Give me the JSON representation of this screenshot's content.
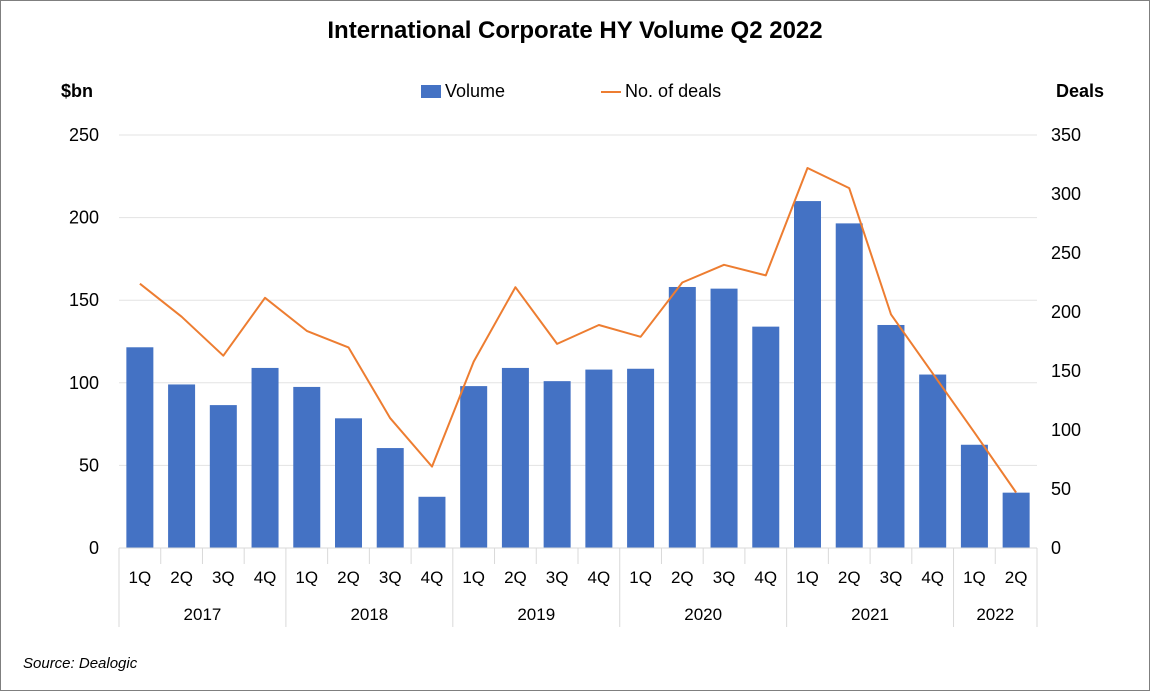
{
  "chart_data": {
    "type": "bar",
    "title": "International Corporate HY Volume Q2 2022",
    "ylabel_left": "$bn",
    "ylabel_right": "Deals",
    "ylim_left": [
      0,
      250
    ],
    "ylim_right": [
      0,
      350
    ],
    "yticks_left": [
      "0",
      "50",
      "100",
      "150",
      "200",
      "250"
    ],
    "yticks_right": [
      "0",
      "50",
      "100",
      "150",
      "200",
      "250",
      "300",
      "350"
    ],
    "grid": true,
    "legend_position": "top",
    "categories": [
      "1Q",
      "2Q",
      "3Q",
      "4Q",
      "1Q",
      "2Q",
      "3Q",
      "4Q",
      "1Q",
      "2Q",
      "3Q",
      "4Q",
      "1Q",
      "2Q",
      "3Q",
      "4Q",
      "1Q",
      "2Q",
      "3Q",
      "4Q",
      "1Q",
      "2Q"
    ],
    "groups": [
      {
        "label": "2017",
        "count": 4
      },
      {
        "label": "2018",
        "count": 4
      },
      {
        "label": "2019",
        "count": 4
      },
      {
        "label": "2020",
        "count": 4
      },
      {
        "label": "2021",
        "count": 4
      },
      {
        "label": "2022",
        "count": 2
      }
    ],
    "series": [
      {
        "name": "Volume",
        "type": "bar",
        "axis": "left",
        "color": "#4472c4",
        "values": [
          121.5,
          99,
          86.5,
          109,
          97.5,
          78.5,
          60.5,
          31,
          98,
          109,
          101,
          108,
          108.5,
          158,
          157,
          134,
          210,
          196.5,
          135,
          105,
          62.5,
          33.5
        ]
      },
      {
        "name": "No. of deals",
        "type": "line",
        "axis": "right",
        "color": "#ed7d31",
        "values": [
          224,
          196,
          163,
          212,
          184,
          170,
          110,
          69,
          158,
          221,
          173,
          189,
          179,
          225,
          240,
          231,
          322,
          305,
          198,
          148,
          98,
          47
        ]
      }
    ],
    "source": "Source: Dealogic"
  }
}
